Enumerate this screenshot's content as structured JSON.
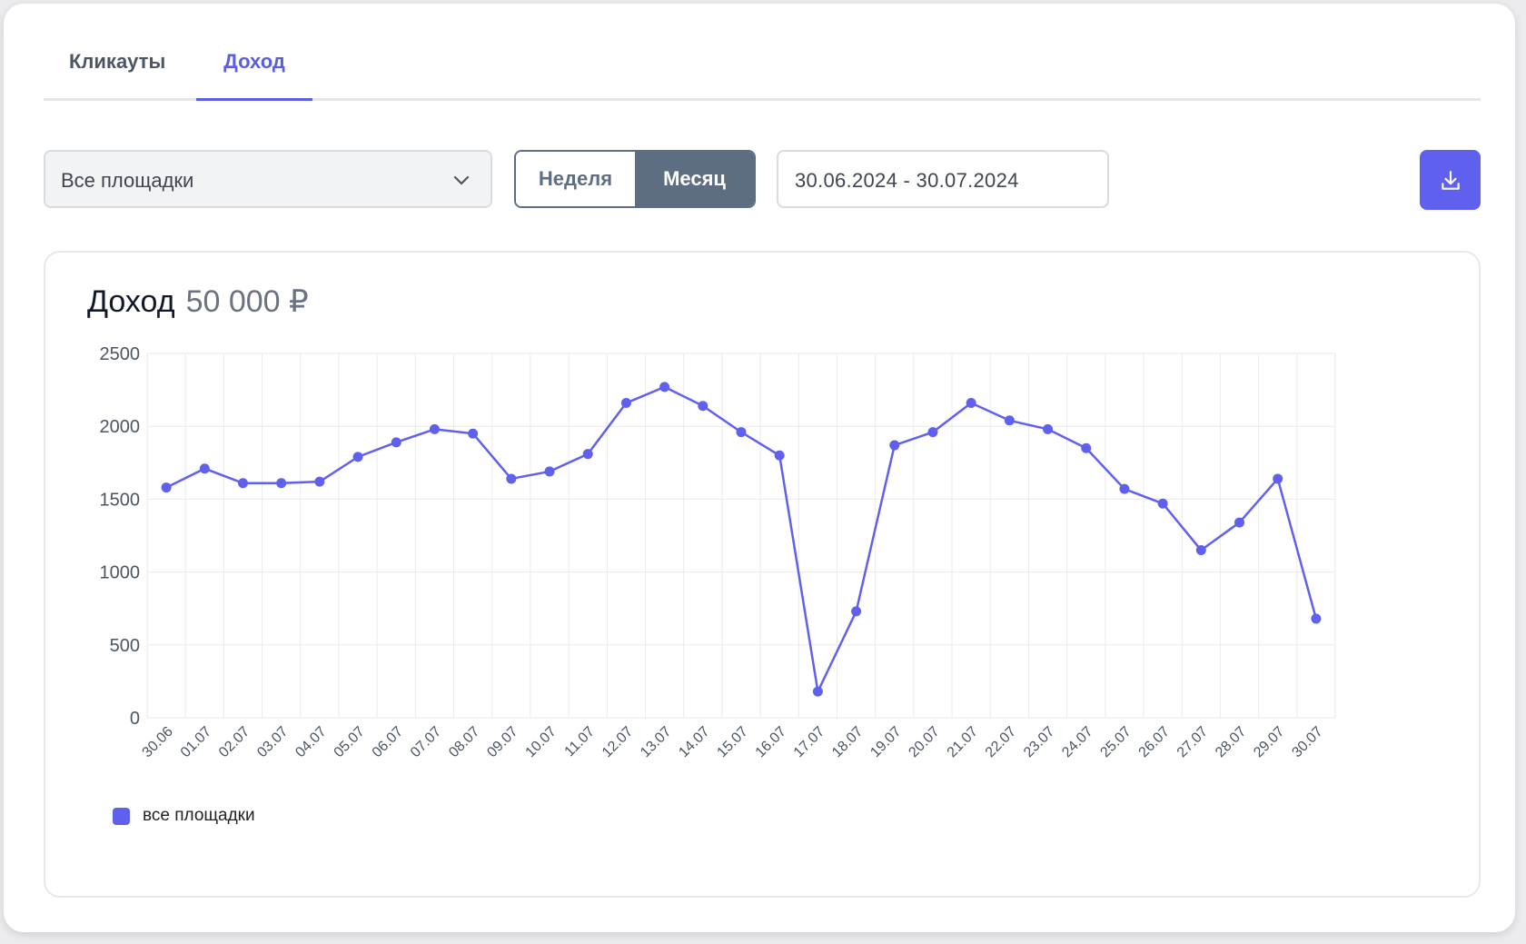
{
  "tabs": [
    "Кликауты",
    "Доход"
  ],
  "active_tab": "Доход",
  "filters": {
    "platform_select": "Все площадки",
    "period_options": [
      "Неделя",
      "Месяц"
    ],
    "period_selected": "Месяц",
    "date_range": "30.06.2024 - 30.07.2024"
  },
  "icons": {
    "select_chevron": "chevron-down-icon",
    "download": "download-icon"
  },
  "colors": {
    "accent": "#6060ef",
    "segment_active": "#5e6e82"
  },
  "panel": {
    "title": "Доход",
    "total": "50 000 ₽"
  },
  "chart_data": {
    "type": "line",
    "x": [
      "30.06",
      "01.07",
      "02.07",
      "03.07",
      "04.07",
      "05.07",
      "06.07",
      "07.07",
      "08.07",
      "09.07",
      "10.07",
      "11.07",
      "12.07",
      "13.07",
      "14.07",
      "15.07",
      "16.07",
      "17.07",
      "18.07",
      "19.07",
      "20.07",
      "21.07",
      "22.07",
      "23.07",
      "24.07",
      "25.07",
      "26.07",
      "27.07",
      "28.07",
      "29.07",
      "30.07"
    ],
    "series": [
      {
        "name": "все площадки",
        "values": [
          1580,
          1710,
          1610,
          1610,
          1620,
          1790,
          1890,
          1980,
          1950,
          1640,
          1690,
          1810,
          2160,
          2270,
          2140,
          1960,
          1800,
          180,
          730,
          1870,
          1960,
          2160,
          2040,
          1980,
          1850,
          1570,
          1470,
          1150,
          1340,
          1640,
          680
        ],
        "color": "#6060ef"
      }
    ],
    "ylim": [
      0,
      2500
    ],
    "yticks": [
      0,
      500,
      1000,
      1500,
      2000,
      2500
    ],
    "grid": true,
    "legend": "bottom-left"
  }
}
